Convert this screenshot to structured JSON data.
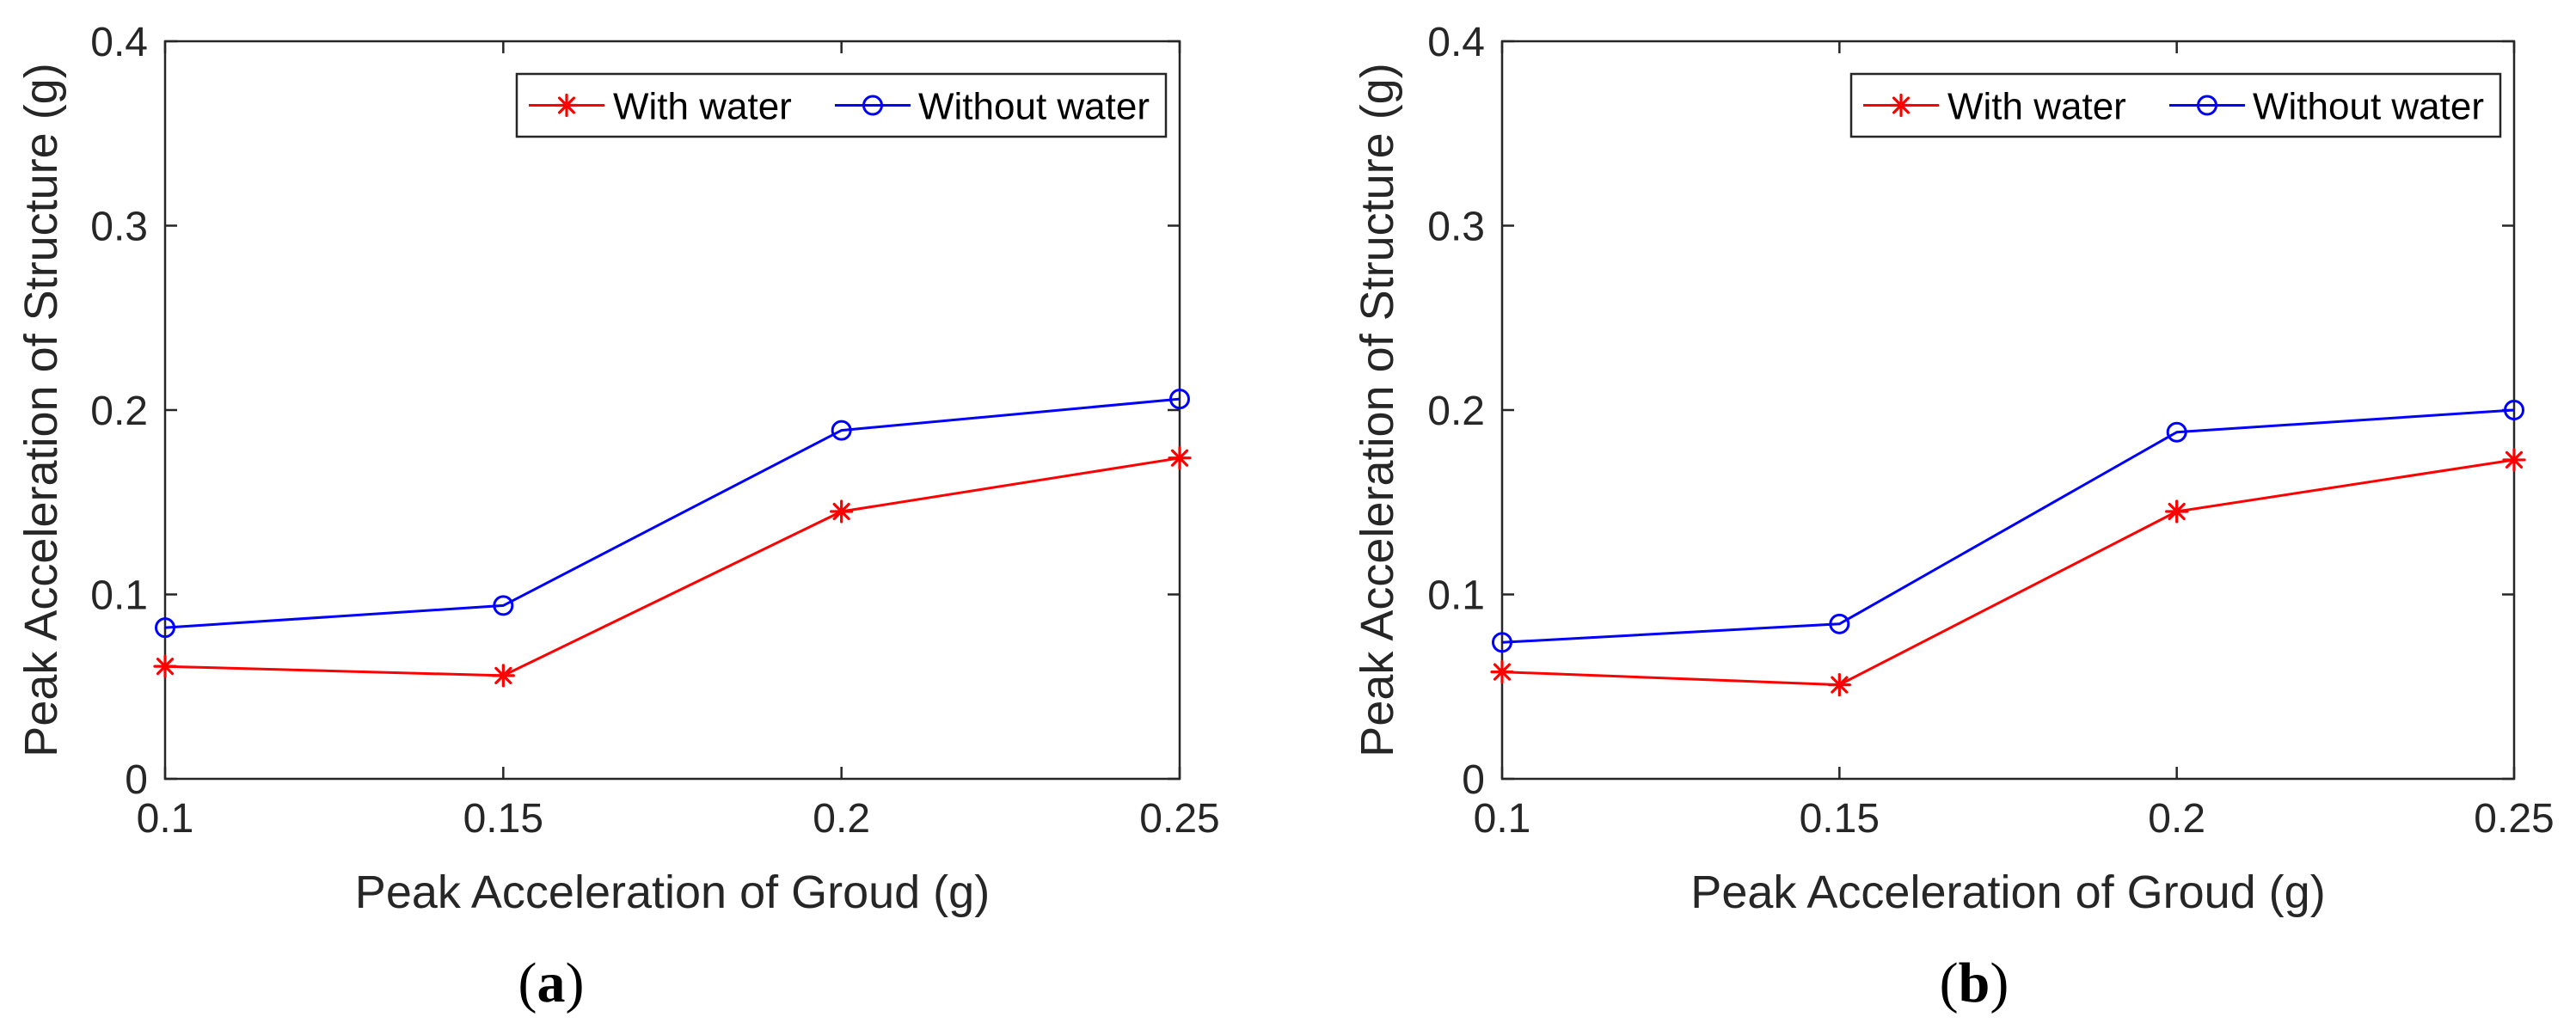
{
  "chart_data": [
    {
      "type": "line",
      "panel_label": "(a)",
      "panel_label_open": "(",
      "panel_label_letter": "a",
      "panel_label_close": ")",
      "title": "",
      "xlabel": "Peak Acceleration of Groud  (g)",
      "ylabel": "Peak Acceleration of Structure  (g)",
      "x": [
        0.1,
        0.15,
        0.2,
        0.25
      ],
      "xticks": [
        "0.1",
        "0.15",
        "0.2",
        "0.25"
      ],
      "xlim": [
        0.1,
        0.25
      ],
      "yticks": [
        "0",
        "0.1",
        "0.2",
        "0.3",
        "0.4"
      ],
      "ylim": [
        0,
        0.4
      ],
      "grid": false,
      "legend_position": "top-right",
      "series": [
        {
          "name": "With water",
          "color": "#ff0000",
          "marker": "asterisk",
          "values": [
            0.061,
            0.056,
            0.145,
            0.174
          ]
        },
        {
          "name": "Without water",
          "color": "#0000ff",
          "marker": "circle",
          "values": [
            0.082,
            0.094,
            0.189,
            0.206
          ]
        }
      ]
    },
    {
      "type": "line",
      "panel_label": "(b)",
      "panel_label_open": "(",
      "panel_label_letter": "b",
      "panel_label_close": ")",
      "title": "",
      "xlabel": "Peak Acceleration of Groud  (g)",
      "ylabel": "Peak Acceleration of Structure  (g)",
      "x": [
        0.1,
        0.15,
        0.2,
        0.25
      ],
      "xticks": [
        "0.1",
        "0.15",
        "0.2",
        "0.25"
      ],
      "xlim": [
        0.1,
        0.25
      ],
      "yticks": [
        "0",
        "0.1",
        "0.2",
        "0.3",
        "0.4"
      ],
      "ylim": [
        0,
        0.4
      ],
      "grid": false,
      "legend_position": "top-right",
      "series": [
        {
          "name": "With water",
          "color": "#ff0000",
          "marker": "asterisk",
          "values": [
            0.058,
            0.051,
            0.145,
            0.173
          ]
        },
        {
          "name": "Without water",
          "color": "#0000ff",
          "marker": "circle",
          "values": [
            0.074,
            0.084,
            0.188,
            0.2
          ]
        }
      ]
    }
  ]
}
